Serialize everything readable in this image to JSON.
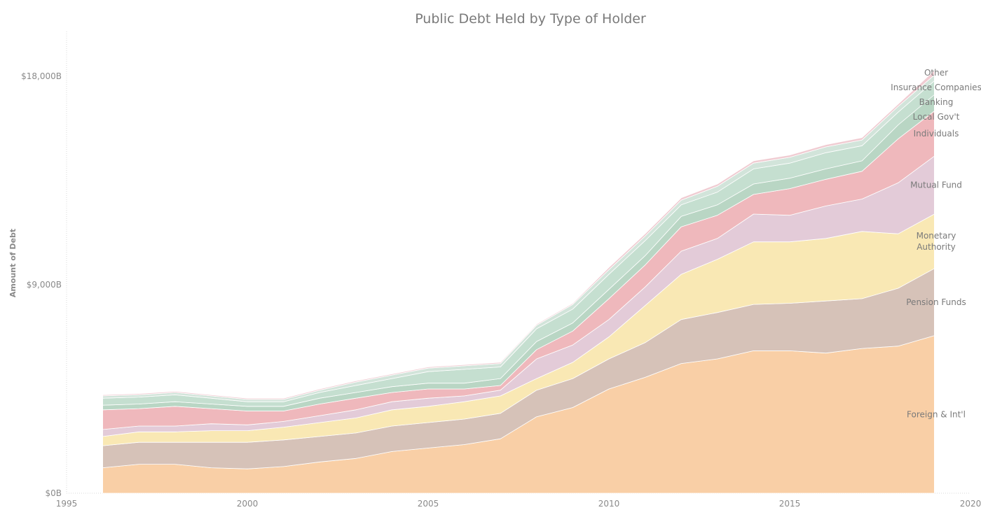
{
  "chart_data": {
    "type": "area",
    "stacked": true,
    "title": "Public Debt Held by Type of Holder",
    "ylabel": "Amount of Debt",
    "xlim": [
      1995,
      2020
    ],
    "ylim": [
      0,
      18000
    ],
    "x_ticks": [
      1995,
      2000,
      2005,
      2010,
      2015,
      2020
    ],
    "y_ticks": [
      {
        "value": 0,
        "label": "$0B"
      },
      {
        "value": 9000,
        "label": "$9,000B"
      },
      {
        "value": 18000,
        "label": "$18,000B"
      }
    ],
    "x": [
      1996,
      1997,
      1998,
      1999,
      2000,
      2001,
      2002,
      2003,
      2004,
      2005,
      2006,
      2007,
      2008,
      2009,
      2010,
      2011,
      2012,
      2013,
      2014,
      2015,
      2016,
      2017,
      2018,
      2019
    ],
    "series": [
      {
        "name": "Foreign & Int'l",
        "color": "#f9cfa6",
        "values": [
          1100,
          1250,
          1250,
          1100,
          1050,
          1150,
          1350,
          1500,
          1800,
          1950,
          2100,
          2350,
          3300,
          3700,
          4500,
          5000,
          5600,
          5800,
          6150,
          6150,
          6050,
          6250,
          6350,
          6800
        ]
      },
      {
        "name": "Pension Funds",
        "color": "#d6c2b8",
        "values": [
          950,
          950,
          950,
          1100,
          1150,
          1150,
          1100,
          1100,
          1100,
          1100,
          1100,
          1100,
          1150,
          1250,
          1300,
          1500,
          1900,
          2000,
          2000,
          2050,
          2250,
          2150,
          2500,
          2900
        ]
      },
      {
        "name": "Monetary Authority",
        "color": "#f9e8b4",
        "values": [
          400,
          450,
          450,
          500,
          500,
          550,
          600,
          650,
          700,
          700,
          750,
          750,
          500,
          700,
          950,
          1600,
          1950,
          2300,
          2700,
          2650,
          2700,
          2900,
          2350,
          2350
        ]
      },
      {
        "name": "Mutual Fund",
        "color": "#e3cbd8",
        "values": [
          300,
          250,
          250,
          300,
          250,
          250,
          300,
          350,
          350,
          350,
          250,
          250,
          850,
          750,
          750,
          800,
          1000,
          900,
          1200,
          1150,
          1400,
          1400,
          2200,
          2500
        ]
      },
      {
        "name": "Individuals",
        "color": "#efb8bc",
        "values": [
          850,
          750,
          850,
          650,
          600,
          450,
          500,
          500,
          400,
          400,
          300,
          200,
          400,
          600,
          900,
          950,
          1050,
          1000,
          850,
          1150,
          1150,
          1200,
          1900,
          1950
        ]
      },
      {
        "name": "Local Gov't",
        "color": "#b9d6c4",
        "values": [
          200,
          200,
          200,
          200,
          200,
          200,
          250,
          250,
          250,
          250,
          250,
          300,
          350,
          350,
          400,
          400,
          450,
          450,
          450,
          450,
          450,
          450,
          600,
          700
        ]
      },
      {
        "name": "Banking",
        "color": "#c5dfd0",
        "values": [
          300,
          300,
          300,
          250,
          200,
          200,
          250,
          300,
          350,
          500,
          600,
          500,
          550,
          600,
          650,
          650,
          500,
          550,
          650,
          650,
          700,
          650,
          550,
          600
        ]
      },
      {
        "name": "Insurance Companies",
        "color": "#d2e4da",
        "values": [
          100,
          100,
          100,
          100,
          100,
          100,
          100,
          150,
          150,
          150,
          150,
          150,
          150,
          200,
          200,
          200,
          200,
          250,
          250,
          250,
          250,
          250,
          250,
          250
        ]
      },
      {
        "name": "Other",
        "color": "#f0ccd2",
        "values": [
          50,
          50,
          50,
          50,
          50,
          50,
          50,
          50,
          50,
          50,
          50,
          50,
          50,
          50,
          100,
          100,
          100,
          100,
          100,
          100,
          100,
          100,
          100,
          200
        ]
      }
    ],
    "legend_lines": {
      "Monetary Authority": [
        "Monetary",
        "Authority"
      ]
    },
    "legend_position": "right"
  }
}
